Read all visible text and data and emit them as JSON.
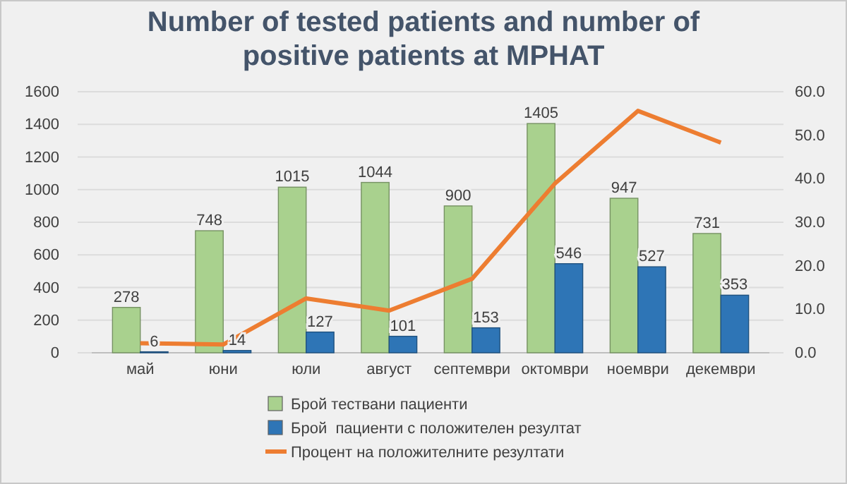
{
  "chart_data": {
    "type": "bar",
    "title": "Number of tested patients and number of positive patients at MPHAT",
    "categories": [
      "май",
      "юни",
      "юли",
      "август",
      "септември",
      "октомври",
      "ноември",
      "декември"
    ],
    "series": [
      {
        "name": "Брой тествани пациенти",
        "color": "#a9d18e",
        "values": [
          278,
          748,
          1015,
          1044,
          900,
          1405,
          947,
          731
        ]
      },
      {
        "name": "Брой  пациенти с положителен резултат",
        "color": "#2e75b6",
        "values": [
          6,
          14,
          127,
          101,
          153,
          546,
          527,
          353
        ]
      },
      {
        "name": "Процент на положителните резултати",
        "type": "line",
        "axis": "y2",
        "color": "#ed7d31",
        "values": [
          2.2,
          1.9,
          12.5,
          9.7,
          17.0,
          38.9,
          55.6,
          48.3
        ]
      }
    ],
    "ylim": [
      0,
      1600
    ],
    "yticks": [
      0,
      200,
      400,
      600,
      800,
      1000,
      1200,
      1400,
      1600
    ],
    "y2lim": [
      0,
      60
    ],
    "y2ticks": [
      {
        "value": 0,
        "label": "0.0"
      },
      {
        "value": 10,
        "label": "10.0"
      },
      {
        "value": 20,
        "label": "20.0"
      },
      {
        "value": 30,
        "label": "30.0"
      },
      {
        "value": 40,
        "label": "40.0"
      },
      {
        "value": 50,
        "label": "50.0"
      },
      {
        "value": 60,
        "label": "60.0"
      }
    ],
    "value_labels": [
      [
        "278",
        "748",
        "1015",
        "1044",
        "900",
        "1405",
        "947",
        "731"
      ],
      [
        "6",
        "14",
        "127",
        "101",
        "153",
        "546",
        "527",
        "353"
      ],
      null
    ],
    "grid": "y",
    "legend": "bottom",
    "marker": "none",
    "line_style": "solid"
  }
}
